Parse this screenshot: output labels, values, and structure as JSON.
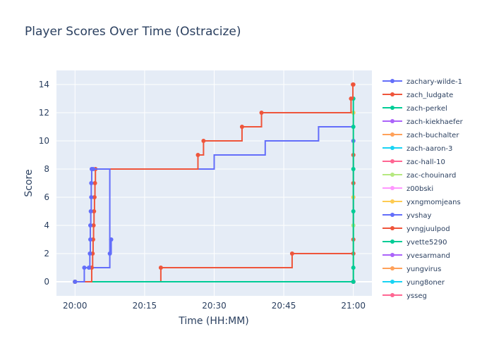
{
  "chart_data": {
    "type": "line",
    "title": "Player Scores Over Time (Ostracize)",
    "xlabel": "Time (HH:MM)",
    "ylabel": "Score",
    "x_ticks": [
      "20:00",
      "20:15",
      "20:30",
      "20:45",
      "21:00"
    ],
    "y_ticks": [
      0,
      2,
      4,
      6,
      8,
      10,
      12,
      14
    ],
    "xlim_minutes_after_20_00": [
      -4,
      64
    ],
    "ylim": [
      -1,
      15
    ],
    "grid": true,
    "legend_position": "right",
    "series": [
      {
        "name": "zachary-wilde-1",
        "color": "#636efa",
        "step": "hv",
        "points": [
          [
            0,
            0
          ],
          [
            2,
            1
          ],
          [
            3,
            1
          ],
          [
            3.2,
            2
          ],
          [
            3.3,
            3
          ],
          [
            3.3,
            4
          ],
          [
            3.4,
            5
          ],
          [
            3.5,
            6
          ],
          [
            3.5,
            7
          ],
          [
            3.6,
            8
          ],
          [
            3.9,
            8
          ],
          [
            7.5,
            2
          ],
          [
            7.8,
            3
          ]
        ]
      },
      {
        "name": "zach_ludgate",
        "color": "#ef553b",
        "step": "hv",
        "points": [
          [
            0,
            0
          ],
          [
            3.6,
            1
          ],
          [
            3.8,
            2
          ],
          [
            3.9,
            3
          ],
          [
            4,
            4
          ],
          [
            4.1,
            5
          ],
          [
            4.2,
            6
          ],
          [
            4.3,
            7
          ],
          [
            4.4,
            8
          ],
          [
            26.5,
            9
          ],
          [
            27.7,
            10
          ],
          [
            36,
            11
          ],
          [
            40.2,
            12
          ],
          [
            59.5,
            13
          ],
          [
            59.9,
            14
          ],
          [
            60,
            14
          ]
        ]
      },
      {
        "name": "zach-perkel",
        "color": "#00cc96",
        "step": "hv",
        "points": [
          [
            0,
            0
          ],
          [
            60,
            0
          ],
          [
            60,
            1
          ],
          [
            60,
            5
          ],
          [
            60,
            8
          ],
          [
            60,
            11
          ],
          [
            60,
            13
          ]
        ]
      },
      {
        "name": "zach-kiekhaefer",
        "color": "#ab63fa",
        "step": "hv",
        "points": [
          [
            0,
            0
          ],
          [
            60,
            0
          ]
        ]
      },
      {
        "name": "zach-buchalter",
        "color": "#ffa15a",
        "step": "hv",
        "points": [
          [
            0,
            0
          ],
          [
            60,
            0
          ]
        ]
      },
      {
        "name": "zach-aaron-3",
        "color": "#19d3f3",
        "step": "hv",
        "points": [
          [
            0,
            0
          ],
          [
            60,
            0
          ]
        ]
      },
      {
        "name": "zac-hall-10",
        "color": "#ff6692",
        "step": "hv",
        "points": [
          [
            0,
            0
          ],
          [
            60,
            0
          ]
        ]
      },
      {
        "name": "zac-chouinard",
        "color": "#b6e880",
        "step": "hv",
        "points": [
          [
            0,
            0
          ],
          [
            60,
            0
          ],
          [
            60,
            4
          ]
        ]
      },
      {
        "name": "z00bski",
        "color": "#ff97ff",
        "step": "hv",
        "points": [
          [
            0,
            0
          ],
          [
            60,
            0
          ]
        ]
      },
      {
        "name": "yxngmomjeans",
        "color": "#fecb52",
        "step": "hv",
        "points": [
          [
            0,
            0
          ],
          [
            60,
            0
          ],
          [
            60,
            6
          ],
          [
            60,
            12
          ]
        ]
      },
      {
        "name": "yvshay",
        "color": "#636efa",
        "step": "hv",
        "points": [
          [
            0,
            0
          ],
          [
            60,
            0
          ],
          [
            60,
            10
          ]
        ]
      },
      {
        "name": "yvngjuulpod",
        "color": "#ef553b",
        "step": "hv",
        "points": [
          [
            0,
            0
          ],
          [
            18.5,
            1
          ],
          [
            46.8,
            2
          ],
          [
            60,
            2
          ],
          [
            60,
            3
          ],
          [
            60,
            7
          ],
          [
            60,
            9
          ]
        ]
      },
      {
        "name": "yvette5290",
        "color": "#00cc96",
        "step": "hv",
        "points": [
          [
            0,
            0
          ],
          [
            60,
            0
          ]
        ]
      },
      {
        "name": "yvesarmand",
        "color": "#ab63fa",
        "step": "hv",
        "points": [
          [
            0,
            0
          ],
          [
            60,
            0
          ]
        ]
      },
      {
        "name": "yungvirus",
        "color": "#ffa15a",
        "step": "hv",
        "points": [
          [
            0,
            0
          ],
          [
            60,
            0
          ]
        ]
      },
      {
        "name": "yung8oner",
        "color": "#19d3f3",
        "step": "hv",
        "points": [
          [
            0,
            0
          ],
          [
            60,
            0
          ]
        ]
      },
      {
        "name": "ysseg",
        "color": "#ff6692",
        "step": "hv",
        "points": [
          [
            0,
            0
          ],
          [
            60,
            0
          ]
        ]
      }
    ],
    "extra_segments": [
      {
        "color": "#636efa",
        "points": [
          [
            3.9,
            1
          ],
          [
            7.5,
            1
          ],
          [
            7.5,
            2
          ]
        ]
      },
      {
        "color": "#636efa",
        "points": [
          [
            4.4,
            8
          ],
          [
            30,
            8
          ],
          [
            30,
            9
          ],
          [
            41,
            9
          ],
          [
            41,
            10
          ],
          [
            52.5,
            10
          ],
          [
            52.5,
            11
          ],
          [
            60,
            11
          ]
        ]
      }
    ]
  }
}
